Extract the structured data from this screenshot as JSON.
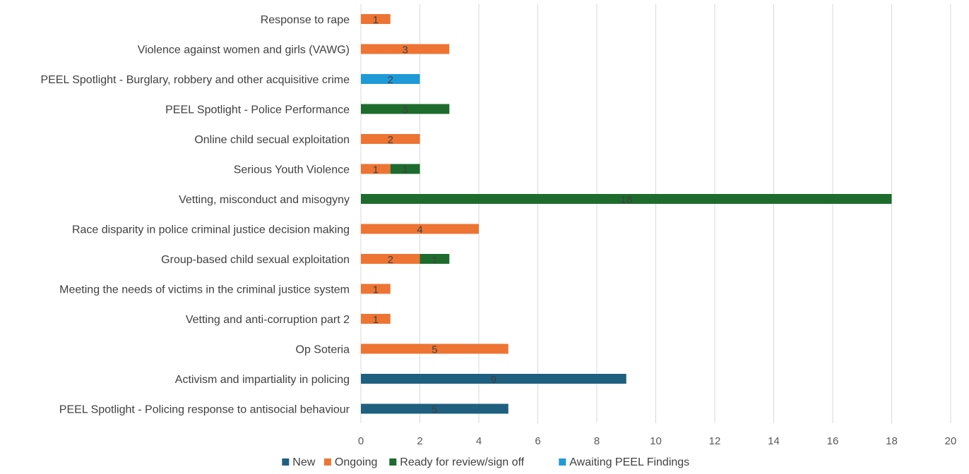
{
  "chart_data": {
    "type": "bar",
    "orientation": "horizontal",
    "stacked": true,
    "categories": [
      "Response to rape",
      "Violence against women and girls (VAWG)",
      "PEEL Spotlight - Burglary, robbery and other acquisitive crime",
      "PEEL Spotlight - Police Performance",
      "Online child secual exploitation",
      "Serious Youth Violence",
      "Vetting, misconduct and misogyny",
      "Race disparity in police criminal justice decision making",
      "Group-based child sexual exploitation",
      "Meeting the needs of victims in the criminal justice system",
      "Vetting and anti-corruption part 2",
      "Op Soteria",
      "Activism and impartiality in policing",
      "PEEL Spotlight - Policing response to antisocial behaviour"
    ],
    "series": [
      {
        "name": "New",
        "color": "#1f5f7f",
        "values": [
          0,
          0,
          0,
          0,
          0,
          0,
          0,
          0,
          0,
          0,
          0,
          0,
          9,
          5
        ]
      },
      {
        "name": "Ongoing",
        "color": "#ed7433",
        "values": [
          1,
          3,
          0,
          0,
          2,
          1,
          0,
          4,
          2,
          1,
          1,
          5,
          0,
          0
        ]
      },
      {
        "name": "Ready for review/sign off",
        "color": "#1d6b2d",
        "values": [
          0,
          0,
          0,
          3,
          0,
          1,
          18,
          0,
          1,
          0,
          0,
          0,
          0,
          0
        ]
      },
      {
        "name": "Awaiting PEEL Findings",
        "color": "#1e9bd7",
        "values": [
          0,
          0,
          2,
          0,
          0,
          0,
          0,
          0,
          0,
          0,
          0,
          0,
          0,
          0
        ]
      }
    ],
    "xlim": [
      0,
      20
    ],
    "xticks": [
      0,
      2,
      4,
      6,
      8,
      10,
      12,
      14,
      16,
      18,
      20
    ],
    "title": "",
    "xlabel": "",
    "ylabel": "",
    "grid": "vertical",
    "legend": "bottom",
    "data_labels": true
  }
}
